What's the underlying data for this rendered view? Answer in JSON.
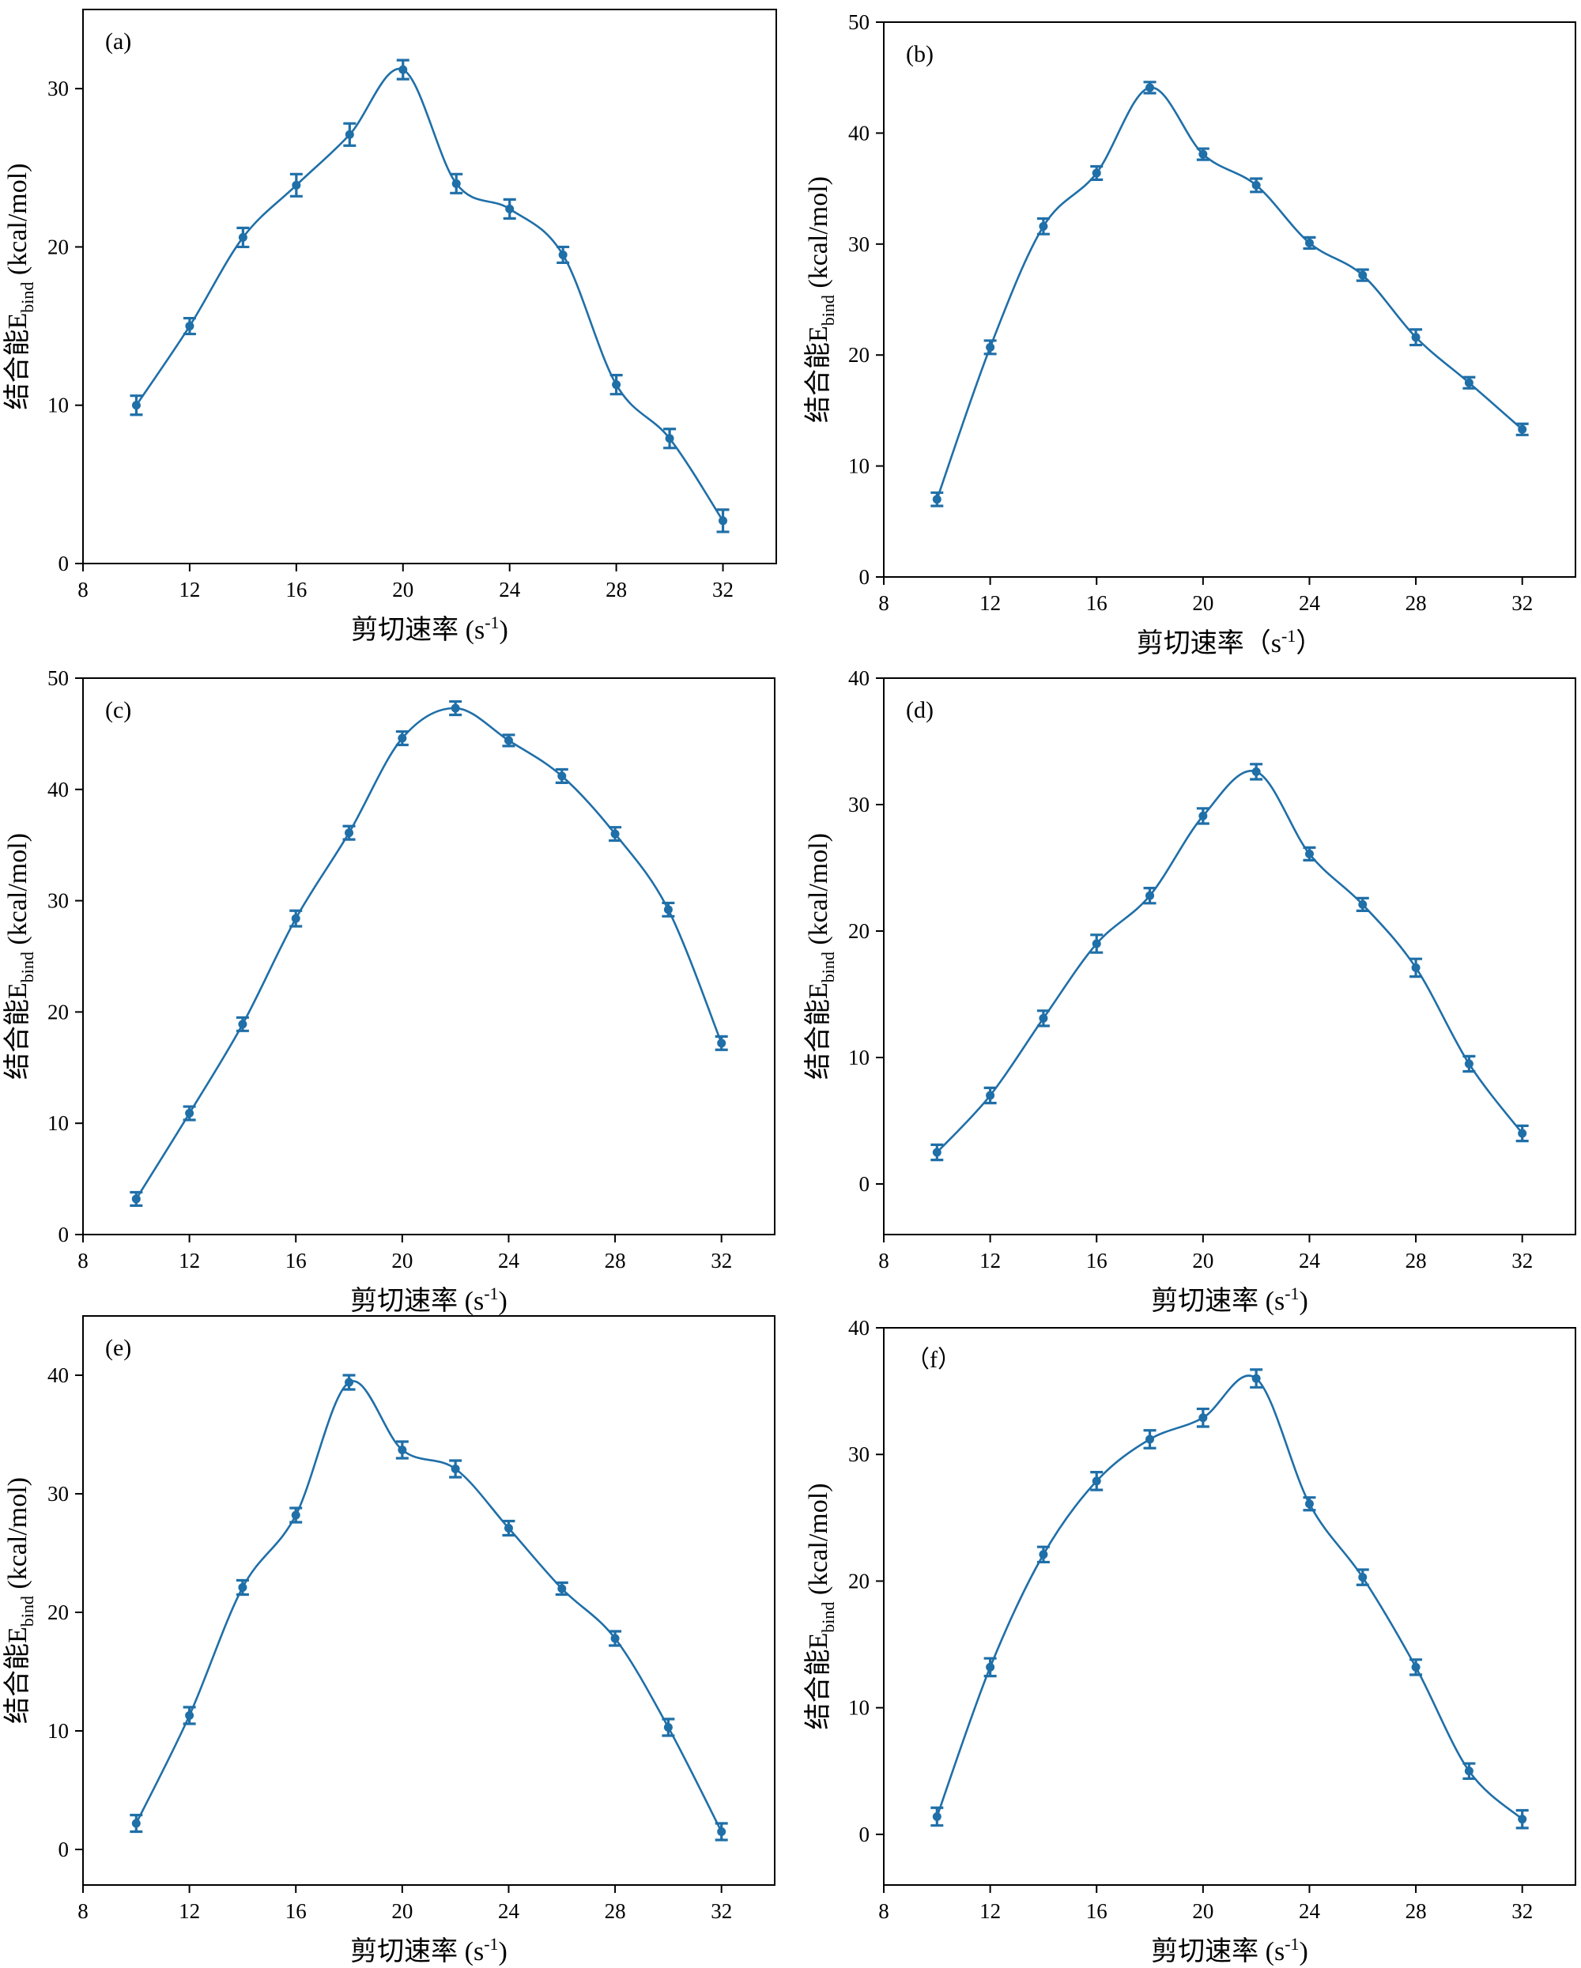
{
  "chart_data": [
    {
      "type": "line",
      "panel_label": "(a)",
      "xlabel_main": "剪切速率 (s",
      "xlabel_sup": "-1",
      "xlabel_end": ")",
      "ylabel_main": "结合能E",
      "ylabel_sub": "bind",
      "ylabel_end": " (kcal/mol)",
      "xlim": [
        8,
        34
      ],
      "ylim": [
        0,
        35
      ],
      "xticks": [
        8,
        12,
        16,
        20,
        24,
        28,
        32
      ],
      "yticks": [
        0,
        10,
        20,
        30
      ],
      "x": [
        10,
        12,
        14,
        16,
        18,
        20,
        22,
        24,
        26,
        28,
        30,
        32
      ],
      "y": [
        10.0,
        15.0,
        20.6,
        23.9,
        27.1,
        31.2,
        24.0,
        22.4,
        19.5,
        11.3,
        7.9,
        2.7
      ],
      "error": [
        0.6,
        0.5,
        0.6,
        0.7,
        0.7,
        0.6,
        0.6,
        0.6,
        0.5,
        0.6,
        0.6,
        0.7
      ]
    },
    {
      "type": "line",
      "panel_label": "(b)",
      "xlabel_main": "剪切速率（s",
      "xlabel_sup": "-1",
      "xlabel_end": "）",
      "ylabel_main": "结合能E",
      "ylabel_sub": "bind",
      "ylabel_end": " (kcal/mol)",
      "xlim": [
        8,
        34
      ],
      "ylim": [
        0,
        50
      ],
      "xticks": [
        8,
        12,
        16,
        20,
        24,
        28,
        32
      ],
      "yticks": [
        0,
        10,
        20,
        30,
        40,
        50
      ],
      "x": [
        10,
        12,
        14,
        16,
        18,
        20,
        22,
        24,
        26,
        28,
        30,
        32
      ],
      "y": [
        7.0,
        20.7,
        31.6,
        36.4,
        44.1,
        38.1,
        35.3,
        30.1,
        27.2,
        21.6,
        17.5,
        13.3
      ],
      "error": [
        0.6,
        0.6,
        0.7,
        0.6,
        0.5,
        0.5,
        0.6,
        0.5,
        0.5,
        0.7,
        0.5,
        0.5
      ]
    },
    {
      "type": "line",
      "panel_label": "(c)",
      "xlabel_main": "剪切速率 (s",
      "xlabel_sup": "-1",
      "xlabel_end": ")",
      "ylabel_main": "结合能E",
      "ylabel_sub": "bind",
      "ylabel_end": " (kcal/mol)",
      "xlim": [
        8,
        34
      ],
      "ylim": [
        0,
        50
      ],
      "xticks": [
        8,
        12,
        16,
        20,
        24,
        28,
        32
      ],
      "yticks": [
        0,
        10,
        20,
        30,
        40,
        50
      ],
      "x": [
        10,
        12,
        14,
        16,
        18,
        20,
        22,
        24,
        26,
        28,
        30,
        32
      ],
      "y": [
        3.2,
        10.9,
        18.9,
        28.4,
        36.1,
        44.6,
        47.3,
        44.4,
        41.2,
        36.0,
        29.2,
        17.2
      ],
      "error": [
        0.6,
        0.6,
        0.6,
        0.7,
        0.6,
        0.6,
        0.6,
        0.5,
        0.6,
        0.6,
        0.6,
        0.6
      ]
    },
    {
      "type": "line",
      "panel_label": "(d)",
      "xlabel_main": "剪切速率 (s",
      "xlabel_sup": "-1",
      "xlabel_end": ")",
      "ylabel_main": "结合能E",
      "ylabel_sub": "bind",
      "ylabel_end": " (kcal/mol)",
      "xlim": [
        8,
        34
      ],
      "ylim": [
        -4,
        40
      ],
      "xticks": [
        8,
        12,
        16,
        20,
        24,
        28,
        32
      ],
      "yticks": [
        0,
        10,
        20,
        30,
        40
      ],
      "x": [
        10,
        12,
        14,
        16,
        18,
        20,
        22,
        24,
        26,
        28,
        30,
        32
      ],
      "y": [
        2.5,
        7.0,
        13.1,
        19.0,
        22.8,
        29.1,
        32.6,
        26.1,
        22.1,
        17.1,
        9.5,
        4.0
      ],
      "error": [
        0.6,
        0.6,
        0.6,
        0.7,
        0.6,
        0.6,
        0.6,
        0.5,
        0.5,
        0.7,
        0.6,
        0.6
      ]
    },
    {
      "type": "line",
      "panel_label": "(e)",
      "xlabel_main": "剪切速率 (s",
      "xlabel_sup": "-1",
      "xlabel_end": ")",
      "ylabel_main": "结合能E",
      "ylabel_sub": "bind",
      "ylabel_end": " (kcal/mol)",
      "xlim": [
        8,
        34
      ],
      "ylim": [
        -3,
        45
      ],
      "xticks": [
        8,
        12,
        16,
        20,
        24,
        28,
        32
      ],
      "yticks": [
        0,
        10,
        20,
        30,
        40
      ],
      "x": [
        10,
        12,
        14,
        16,
        18,
        20,
        22,
        24,
        26,
        28,
        30,
        32
      ],
      "y": [
        2.2,
        11.3,
        22.1,
        28.2,
        39.4,
        33.7,
        32.1,
        27.1,
        22.0,
        17.8,
        10.3,
        1.5
      ],
      "error": [
        0.7,
        0.7,
        0.6,
        0.6,
        0.6,
        0.7,
        0.7,
        0.6,
        0.5,
        0.6,
        0.7,
        0.7
      ]
    },
    {
      "type": "line",
      "panel_label": "（f）",
      "xlabel_main": "剪切速率 (s",
      "xlabel_sup": "-1",
      "xlabel_end": ")",
      "ylabel_main": "结合能E",
      "ylabel_sub": "bind",
      "ylabel_end": " (kcal/mol)",
      "xlim": [
        8,
        34
      ],
      "ylim": [
        -4,
        40
      ],
      "xticks": [
        8,
        12,
        16,
        20,
        24,
        28,
        32
      ],
      "yticks": [
        0,
        10,
        20,
        30,
        40
      ],
      "x": [
        10,
        12,
        14,
        16,
        18,
        20,
        22,
        24,
        26,
        28,
        30,
        32
      ],
      "y": [
        1.4,
        13.2,
        22.1,
        27.9,
        31.2,
        32.9,
        36.0,
        26.1,
        20.3,
        13.2,
        5.0,
        1.2
      ],
      "error": [
        0.7,
        0.7,
        0.6,
        0.7,
        0.7,
        0.7,
        0.7,
        0.5,
        0.6,
        0.6,
        0.6,
        0.7
      ]
    }
  ]
}
